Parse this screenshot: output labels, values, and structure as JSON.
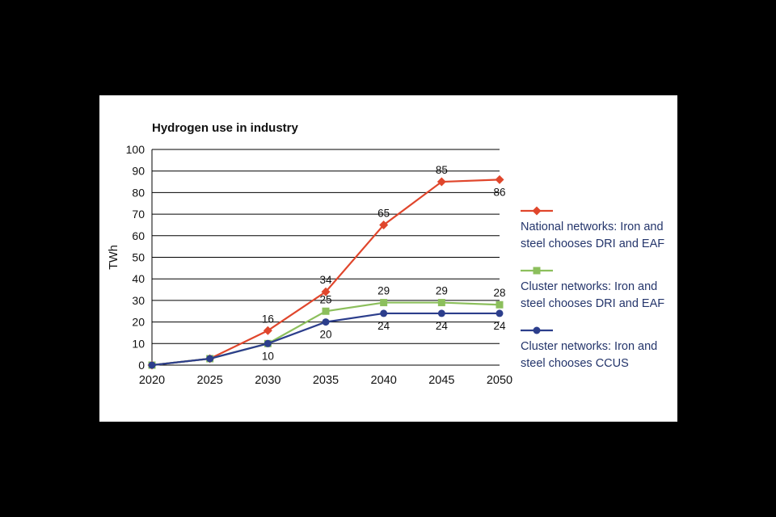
{
  "chart_data": {
    "type": "line",
    "title": "Hydrogen use in industry",
    "ylabel": "TWh",
    "categories": [
      "2020",
      "2025",
      "2030",
      "2035",
      "2040",
      "2045",
      "2050"
    ],
    "ylim": [
      0,
      100
    ],
    "ytick_step": 10,
    "grid": "horizontal",
    "legend_position": "right",
    "series": [
      {
        "name": "National networks: Iron and steel chooses DRI and EAF",
        "color": "#e0462c",
        "marker": "diamond",
        "values": [
          0,
          3,
          16,
          34,
          65,
          85,
          86
        ],
        "labels": [
          null,
          null,
          "16",
          "34",
          "65",
          "85",
          "86"
        ],
        "label_pos": [
          null,
          null,
          "above",
          "above",
          "above",
          "above",
          "below"
        ]
      },
      {
        "name": "Cluster networks: Iron and steel chooses DRI and EAF",
        "color": "#8cbf5c",
        "marker": "square",
        "values": [
          0,
          3,
          10,
          25,
          29,
          29,
          28
        ],
        "labels": [
          null,
          null,
          "10",
          "25",
          "29",
          "29",
          "28"
        ],
        "label_pos": [
          null,
          null,
          "below",
          "above",
          "above",
          "above",
          "above"
        ]
      },
      {
        "name": "Cluster networks: Iron and steel chooses CCUS",
        "color": "#2c3e8c",
        "marker": "circle",
        "values": [
          0,
          3,
          10,
          20,
          24,
          24,
          24
        ],
        "labels": [
          null,
          null,
          null,
          "20",
          "24",
          "24",
          "24"
        ],
        "label_pos": [
          null,
          null,
          null,
          "below",
          "below",
          "below",
          "below"
        ]
      }
    ]
  }
}
